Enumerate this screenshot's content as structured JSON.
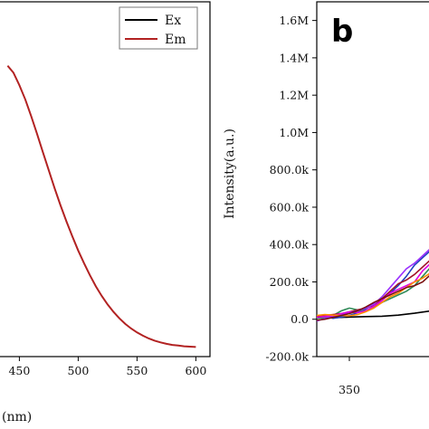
{
  "chart_data": [
    {
      "type": "line",
      "title": "",
      "xlabel": "(nm)",
      "ylabel": "",
      "xlim": [
        432,
        612
      ],
      "ylim": [
        0,
        1
      ],
      "x_ticks": [
        "450",
        "500",
        "550",
        "600"
      ],
      "x_tick_values": [
        450,
        500,
        550,
        600
      ],
      "legend": {
        "placement": "top-right",
        "entries": [
          "Ex",
          "Em"
        ]
      },
      "colors": {
        "Ex": "#000000",
        "Em": "#b22222"
      },
      "series": [
        {
          "name": "Em",
          "x": [
            440,
            445,
            450,
            455,
            460,
            465,
            470,
            475,
            480,
            485,
            490,
            495,
            500,
            505,
            510,
            515,
            520,
            525,
            530,
            535,
            540,
            545,
            550,
            555,
            560,
            565,
            570,
            575,
            580,
            585,
            590,
            595,
            600
          ],
          "y": [
            0.82,
            0.8,
            0.765,
            0.725,
            0.678,
            0.628,
            0.576,
            0.525,
            0.474,
            0.426,
            0.381,
            0.339,
            0.299,
            0.263,
            0.229,
            0.198,
            0.171,
            0.147,
            0.126,
            0.108,
            0.092,
            0.079,
            0.068,
            0.059,
            0.051,
            0.045,
            0.04,
            0.036,
            0.033,
            0.031,
            0.029,
            0.028,
            0.027
          ]
        }
      ]
    },
    {
      "type": "line",
      "title": "",
      "panel_label": "b",
      "xlabel": "",
      "ylabel": "Intensity(a.u.)",
      "xlim": [
        330,
        400
      ],
      "ylim": [
        -200000,
        1700000
      ],
      "x_ticks": [
        "350"
      ],
      "x_tick_values": [
        350
      ],
      "y_ticks": [
        "-200.0k",
        "0.0",
        "200.0k",
        "400.0k",
        "600.0k",
        "800.0k",
        "1.0M",
        "1.2M",
        "1.4M",
        "1.6M"
      ],
      "y_tick_values": [
        -200000,
        0,
        200000,
        400000,
        600000,
        800000,
        1000000,
        1200000,
        1400000,
        1600000
      ],
      "series": [
        {
          "color": "#000000",
          "x": [
            330,
            340,
            350,
            360,
            370,
            380,
            390,
            400
          ],
          "y": [
            10000,
            8000,
            12000,
            14000,
            16000,
            22000,
            32000,
            45000
          ]
        },
        {
          "color": "#1f3fbf",
          "x": [
            330,
            335,
            340,
            345,
            350,
            355,
            360,
            365,
            370,
            375,
            380,
            385,
            390,
            395,
            400
          ],
          "y": [
            10000,
            15000,
            5000,
            12000,
            20000,
            35000,
            55000,
            85000,
            110000,
            140000,
            180000,
            230000,
            290000,
            330000,
            370000
          ]
        },
        {
          "color": "#2e8b57",
          "x": [
            330,
            335,
            340,
            345,
            350,
            355,
            360,
            365,
            370,
            375,
            380,
            385,
            390,
            395,
            400
          ],
          "y": [
            5000,
            10000,
            20000,
            45000,
            60000,
            50000,
            45000,
            65000,
            90000,
            110000,
            130000,
            150000,
            180000,
            230000,
            280000
          ]
        },
        {
          "color": "#a0142a",
          "x": [
            330,
            335,
            340,
            345,
            350,
            355,
            360,
            365,
            370,
            375,
            380,
            385,
            390,
            395,
            400
          ],
          "y": [
            15000,
            20000,
            25000,
            30000,
            40000,
            50000,
            60000,
            75000,
            110000,
            150000,
            190000,
            210000,
            240000,
            280000,
            320000
          ]
        },
        {
          "color": "#9b30ff",
          "x": [
            330,
            335,
            340,
            345,
            350,
            355,
            360,
            365,
            370,
            375,
            380,
            385,
            390,
            395,
            400
          ],
          "y": [
            -10000,
            5000,
            15000,
            25000,
            35000,
            45000,
            60000,
            80000,
            120000,
            170000,
            220000,
            270000,
            300000,
            340000,
            380000
          ]
        },
        {
          "color": "#e000e0",
          "x": [
            330,
            335,
            340,
            345,
            350,
            355,
            360,
            365,
            370,
            375,
            380,
            385,
            390,
            395,
            400
          ],
          "y": [
            10000,
            15000,
            20000,
            30000,
            40000,
            35000,
            45000,
            70000,
            100000,
            140000,
            160000,
            180000,
            200000,
            260000,
            300000
          ]
        },
        {
          "color": "#ff8c00",
          "x": [
            330,
            335,
            340,
            345,
            350,
            355,
            360,
            365,
            370,
            375,
            380,
            385,
            390,
            395,
            400
          ],
          "y": [
            20000,
            25000,
            22000,
            20000,
            18000,
            25000,
            40000,
            60000,
            90000,
            120000,
            140000,
            170000,
            200000,
            220000,
            250000
          ]
        },
        {
          "color": "#7a1010",
          "x": [
            330,
            335,
            340,
            345,
            350,
            355,
            360,
            365,
            370,
            375,
            380,
            385,
            390,
            395,
            400
          ],
          "y": [
            -5000,
            0,
            10000,
            20000,
            30000,
            45000,
            65000,
            90000,
            110000,
            130000,
            150000,
            170000,
            180000,
            200000,
            240000
          ]
        }
      ]
    }
  ]
}
